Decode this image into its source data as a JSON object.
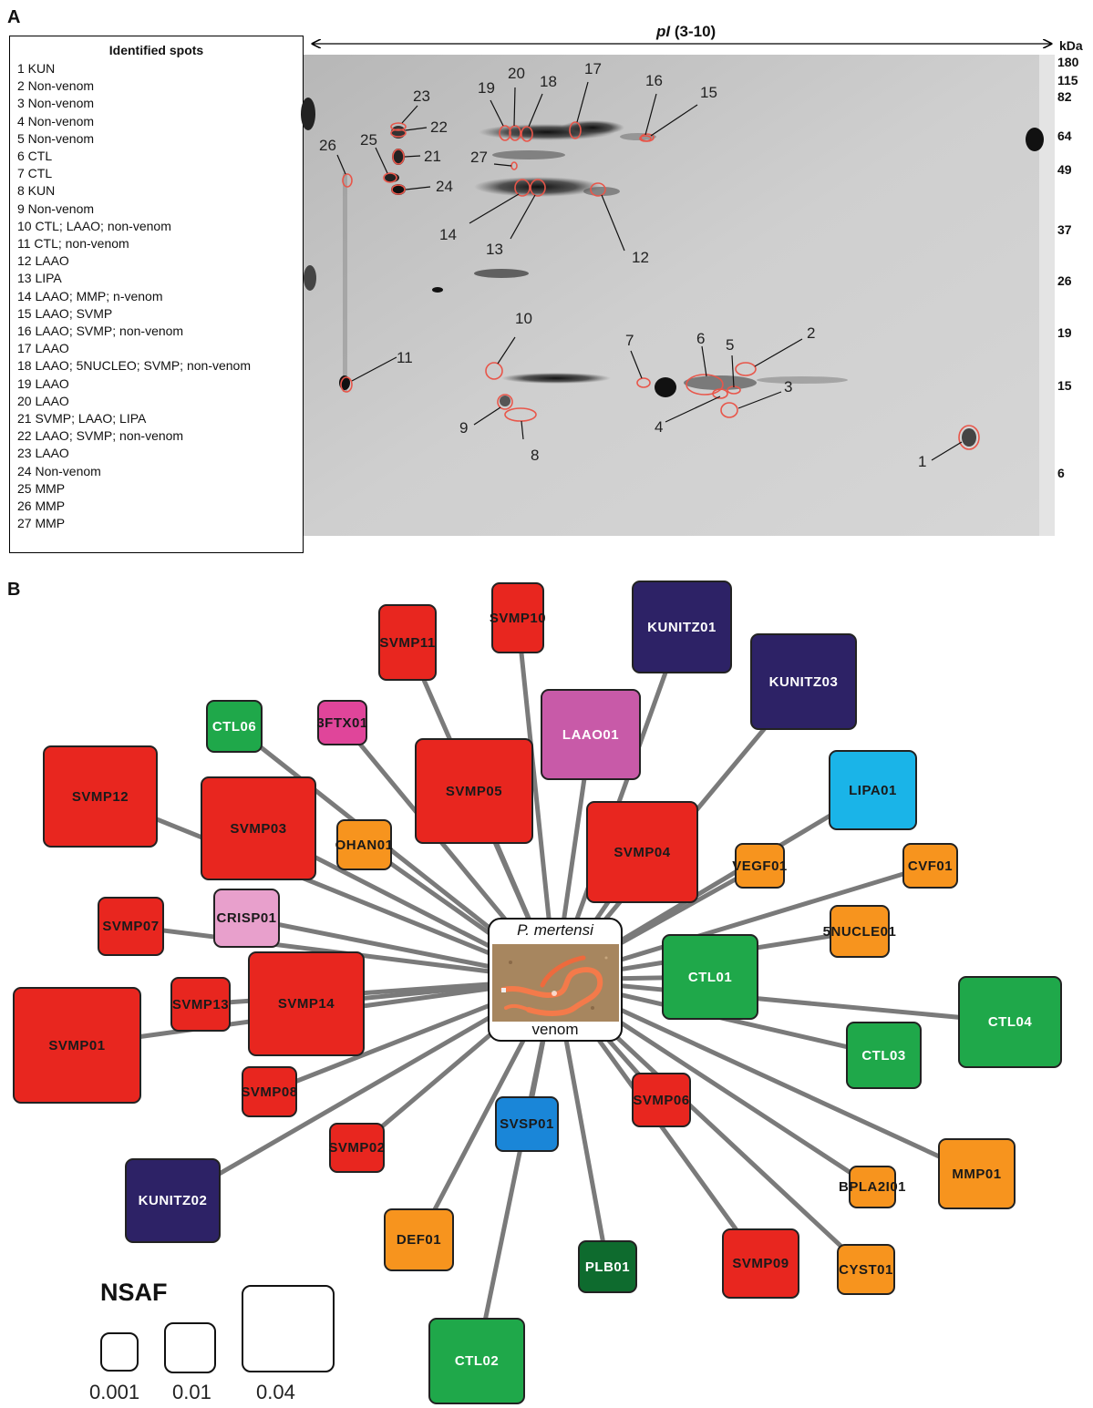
{
  "panel_a": {
    "letter": "A",
    "spots_title": "Identified spots",
    "spots": [
      "1 KUN",
      "2 Non-venom",
      "3 Non-venom",
      "4 Non-venom",
      "5 Non-venom",
      "6 CTL",
      "7 CTL",
      "8 KUN",
      "9 Non-venom",
      "10 CTL; LAAO; non-venom",
      "11 CTL; non-venom",
      "12 LAAO",
      "13 LIPA",
      "14 LAAO; MMP; n-venom",
      "15 LAAO; SVMP",
      "16 LAAO; SVMP; non-venom",
      "17 LAAO",
      "18 LAAO; 5NUCLEO; SVMP; non-venom",
      "19 LAAO",
      "20 LAAO",
      "21 SVMP; LAAO; LIPA",
      "22 LAAO; SVMP; non-venom",
      "23 LAAO",
      "24 Non-venom",
      "25 MMP",
      "26 MMP",
      "27 MMP"
    ],
    "pi_title_italic": "pI",
    "pi_title_rest": " (3-10)",
    "kda_label": "kDa",
    "kda_ticks": [
      "180",
      "115",
      "82",
      "64",
      "49",
      "37",
      "26",
      "19",
      "15",
      "6"
    ],
    "spot_numbers": [
      "1",
      "2",
      "3",
      "4",
      "5",
      "6",
      "7",
      "8",
      "9",
      "10",
      "11",
      "12",
      "13",
      "14",
      "15",
      "16",
      "17",
      "18",
      "19",
      "20",
      "21",
      "22",
      "23",
      "24",
      "25",
      "26",
      "27"
    ]
  },
  "panel_b": {
    "letter": "B",
    "center_top": "P. mertensi",
    "center_bottom": "venom",
    "colors": {
      "svmp": "#e8261f",
      "kunitz": "#2d2266",
      "laao": "#c85aa8",
      "ctl": "#1fa84a",
      "lipa": "#1ab4e8",
      "orange": "#f7941e",
      "crisp": "#e8a0cc",
      "ftx": "#e0459a",
      "svsp": "#1a86d8",
      "plb": "#0e6b2e"
    },
    "nodes": [
      {
        "label": "SVMP10"
      },
      {
        "label": "SVMP11"
      },
      {
        "label": "KUNITZ01"
      },
      {
        "label": "KUNITZ03"
      },
      {
        "label": "CTL06"
      },
      {
        "label": "3FTX01"
      },
      {
        "label": "LAAO01"
      },
      {
        "label": "SVMP05"
      },
      {
        "label": "LIPA01"
      },
      {
        "label": "SVMP12"
      },
      {
        "label": "SVMP03"
      },
      {
        "label": "OHAN01"
      },
      {
        "label": "SVMP04"
      },
      {
        "label": "VEGF01"
      },
      {
        "label": "CVF01"
      },
      {
        "label": "SVMP07"
      },
      {
        "label": "CRISP01"
      },
      {
        "label": "5NUCLE01"
      },
      {
        "label": "CTL01"
      },
      {
        "label": "SVMP13"
      },
      {
        "label": "SVMP14"
      },
      {
        "label": "SVMP01"
      },
      {
        "label": "CTL04"
      },
      {
        "label": "CTL03"
      },
      {
        "label": "SVMP08"
      },
      {
        "label": "SVMP06"
      },
      {
        "label": "SVSP01"
      },
      {
        "label": "SVMP02"
      },
      {
        "label": "MMP01"
      },
      {
        "label": "BPLA2I01"
      },
      {
        "label": "KUNITZ02"
      },
      {
        "label": "DEF01"
      },
      {
        "label": "PLB01"
      },
      {
        "label": "SVMP09"
      },
      {
        "label": "CYST01"
      },
      {
        "label": "CTL02"
      }
    ],
    "legend": {
      "title": "NSAF",
      "values": [
        "0.001",
        "0.01",
        "0.04"
      ]
    }
  }
}
